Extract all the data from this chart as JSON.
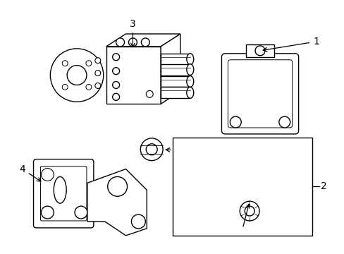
{
  "bg_color": "#ffffff",
  "lc": "#000000",
  "lw": 1.0,
  "label_fs": 9
}
